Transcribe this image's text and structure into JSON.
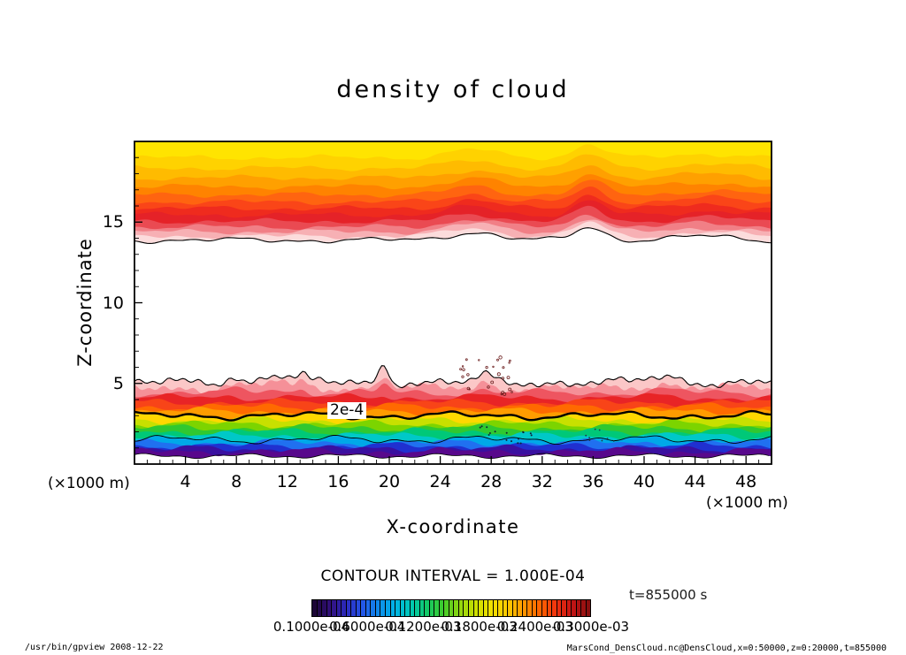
{
  "footer": {
    "left": "/usr/bin/gpview  2008-12-22",
    "right": "MarsCond_DensCloud.nc@DensCloud,x=0:50000,z=0:20000,t=855000"
  },
  "chart_data": {
    "type": "heatmap",
    "plot_kind": "filled contour (tone) plot with line contours",
    "title": "density of cloud",
    "xlabel": "X-coordinate",
    "ylabel": "Z-coordinate",
    "x_unit": "(×1000 m)",
    "y_unit": "(×1000 m)",
    "xlim": [
      0,
      50
    ],
    "ylim": [
      0,
      20
    ],
    "x_ticks_major": [
      4,
      8,
      12,
      16,
      20,
      24,
      28,
      32,
      36,
      40,
      44,
      48
    ],
    "x_ticks_minor_step": 1,
    "y_ticks_major": [
      5,
      10,
      15
    ],
    "y_ticks_minor_step": 1,
    "grid": false,
    "contour_interval_text": "CONTOUR INTERVAL = 1.000E-04",
    "contour_interval": 0.0001,
    "time_label": "t=855000 s",
    "labeled_contour": {
      "level": "2e-4",
      "z_approx_thousand_m": 3.0,
      "x_label_thousand_m": 16.5
    },
    "colorbar": {
      "cells": 57,
      "labels": [
        "0.1000e-04",
        "0.6000e-04",
        "0.1200e-03",
        "0.1800e-03",
        "0.2400e-03",
        "0.3000e-03"
      ],
      "stops": [
        "#1c0636",
        "#32107c",
        "#2b2bbf",
        "#2456e8",
        "#0e8ceb",
        "#00b4e6",
        "#00c9b4",
        "#12c967",
        "#3fcc2a",
        "#8fd60f",
        "#ccdf00",
        "#f2e000",
        "#ffc800",
        "#ff9600",
        "#ff6400",
        "#f0320f",
        "#c41414",
        "#8a0f0f"
      ]
    },
    "upper_band": {
      "description": "upper cloud deck filling top of plot down to z≈13.9 (×1000 m); yellow at top shading through orange to red near z≈15, fading to white at its wavy lower edge (bumps near x≈26 and x≈36)",
      "layers": [
        {
          "color": "#ffe400",
          "z": 19.0
        },
        {
          "color": "#ffd200",
          "z": 18.35
        },
        {
          "color": "#ffbb00",
          "z": 17.75
        },
        {
          "color": "#ffa000",
          "z": 17.2
        },
        {
          "color": "#ff8300",
          "z": 16.7
        },
        {
          "color": "#ff6410",
          "z": 16.25
        },
        {
          "color": "#fa4518",
          "z": 15.85
        },
        {
          "color": "#ef2b1e",
          "z": 15.45
        },
        {
          "color": "#e52228",
          "z": 15.05
        },
        {
          "color": "#ea4a52",
          "z": 14.7
        },
        {
          "color": "#f17f86",
          "z": 14.4
        },
        {
          "color": "#f7b0b4",
          "z": 14.12
        },
        {
          "color": "#fcdcdc",
          "z": 13.88,
          "stroke": "thin"
        }
      ]
    },
    "lower_band": {
      "description": "near-surface cloud layer between z≈0.5 and z≈5 across the full x range; pink/red at top through orange, yellow, green, cyan, blue to dark violet at bottom; spiky top edge near x≈11, 13, 19.6, 27.5, 41",
      "z_base": 0.5,
      "layers": [
        {
          "color": "#fbc7c7",
          "z": 5.05,
          "stroke": "thin"
        },
        {
          "color": "#f59098",
          "z": 4.72
        },
        {
          "color": "#ee5560",
          "z": 4.42
        },
        {
          "color": "#e82426",
          "z": 4.12
        },
        {
          "color": "#f84418",
          "z": 3.82
        },
        {
          "color": "#ff6a00",
          "z": 3.55
        },
        {
          "color": "#ff9c00",
          "z": 3.28
        },
        {
          "color": "#ffd800",
          "z": 3.0,
          "stroke": "thick"
        },
        {
          "color": "#c8e000",
          "z": 2.72
        },
        {
          "color": "#7cd400",
          "z": 2.48
        },
        {
          "color": "#30c830",
          "z": 2.24
        },
        {
          "color": "#00c878",
          "z": 2.0
        },
        {
          "color": "#00c8c8",
          "z": 1.76
        },
        {
          "color": "#00a8e8",
          "z": 1.52,
          "stroke": "thin"
        },
        {
          "color": "#2070f0",
          "z": 1.32
        },
        {
          "color": "#2030d0",
          "z": 1.12
        },
        {
          "color": "#3a10a0",
          "z": 0.94
        },
        {
          "color": "#58088c",
          "z": 0.78
        }
      ]
    }
  }
}
